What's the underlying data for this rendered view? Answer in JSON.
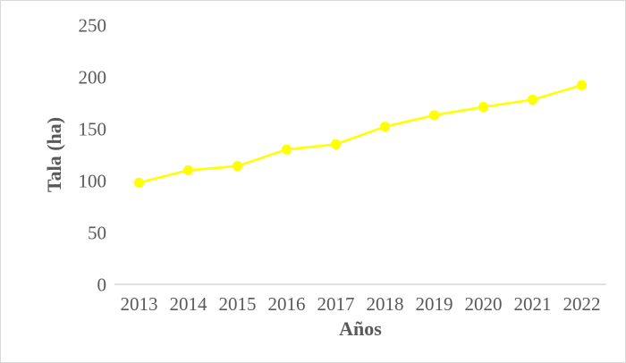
{
  "chart_data": {
    "type": "line",
    "title": "",
    "xlabel": "Años",
    "ylabel": "Tala (ha)",
    "categories": [
      "2013",
      "2014",
      "2015",
      "2016",
      "2017",
      "2018",
      "2019",
      "2020",
      "2021",
      "2022"
    ],
    "series": [
      {
        "name": "Tala",
        "values": [
          98,
          110,
          114,
          130,
          135,
          152,
          163,
          171,
          178,
          192
        ]
      }
    ],
    "ylim": [
      0,
      250
    ],
    "yticks": [
      0,
      50,
      100,
      150,
      200,
      250
    ],
    "grid": false,
    "legend_position": "none",
    "line_color": "#FFFF00",
    "marker_shape": "circle",
    "text_color": "#595959",
    "axis_line_color": "#d6d6d6",
    "background_color": "#ffffff",
    "frame_border_color": "#d9d9d9"
  }
}
